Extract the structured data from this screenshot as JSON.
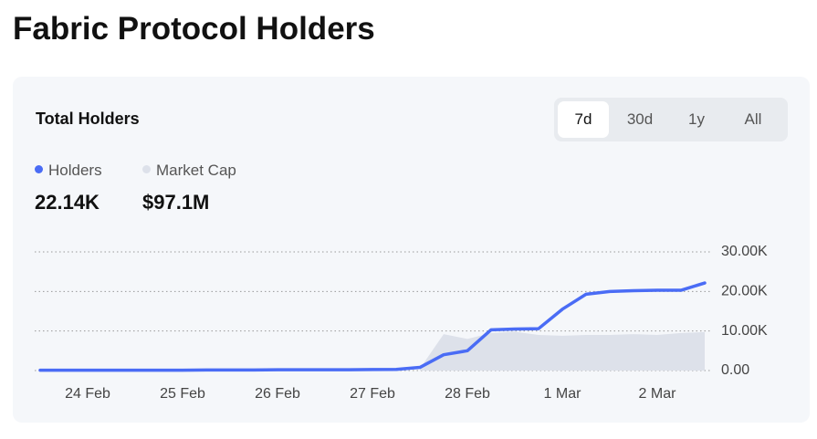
{
  "title": "Fabric Protocol Holders",
  "tabs": [
    "7d",
    "30d",
    "1y",
    "All"
  ],
  "active_tab": 0,
  "chart_data": {
    "type": "line",
    "title": "Total Holders",
    "categories": [
      null,
      null,
      "24 Feb",
      null,
      null,
      null,
      "25 Feb",
      null,
      null,
      null,
      "26 Feb",
      null,
      null,
      null,
      "27 Feb",
      null,
      null,
      null,
      "28 Feb",
      null,
      null,
      null,
      "1 Mar",
      null,
      null,
      null,
      "2 Mar",
      null,
      null
    ],
    "series": [
      {
        "name": "Holders",
        "color": "#4a6cf5",
        "latest_label": "22.14K",
        "values": [
          100,
          100,
          100,
          100,
          100,
          100,
          100,
          150,
          150,
          150,
          200,
          200,
          200,
          200,
          250,
          300,
          800,
          4000,
          5000,
          10300,
          10500,
          10600,
          15500,
          19300,
          20000,
          20200,
          20300,
          20300,
          22140
        ]
      },
      {
        "name": "Market Cap",
        "color": "#dde1ea",
        "axis": "y2",
        "latest_label": "$97.1M",
        "values": [
          null,
          null,
          null,
          null,
          null,
          null,
          null,
          null,
          null,
          null,
          null,
          null,
          null,
          null,
          null,
          null,
          5000000,
          92000000,
          80000000,
          95000000,
          98000000,
          90000000,
          88000000,
          90000000,
          90000000,
          92000000,
          90000000,
          95000000,
          97100000
        ]
      }
    ],
    "ylim": [
      0,
      30000
    ],
    "yticks": [
      {
        "value": 0,
        "label": "0.00"
      },
      {
        "value": 10000,
        "label": "10.00K"
      },
      {
        "value": 20000,
        "label": "20.00K"
      },
      {
        "value": 30000,
        "label": "30.00K"
      }
    ],
    "y2lim": [
      0,
      300000000
    ],
    "grid": true
  }
}
